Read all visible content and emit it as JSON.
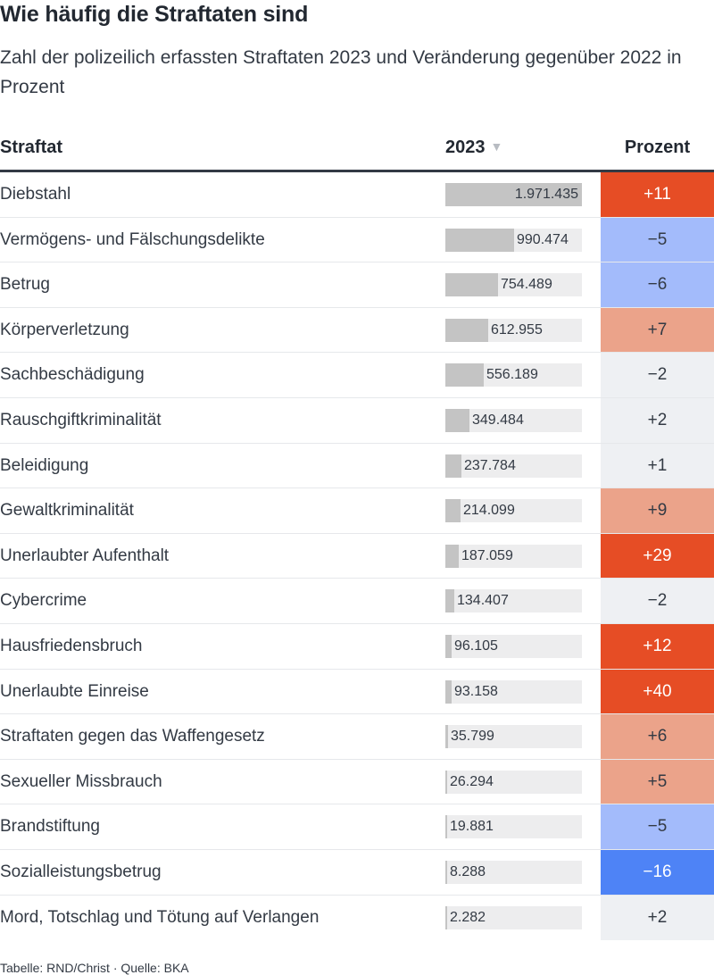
{
  "title": "Wie häufig die Straftaten sind",
  "subtitle": "Zahl der polizeilich erfassten Straftaten 2023 und Veränderung gegenüber 2022 in Prozent",
  "columns": {
    "name": "Straftat",
    "value": "2023",
    "sort_icon": "sort-down-icon",
    "change": "Prozent"
  },
  "source": "Tabelle: RND/Christ · Quelle: BKA",
  "colors": {
    "strong_increase": "#e64d25",
    "increase": "#eba38a",
    "neutral": "#eef0f3",
    "decrease": "#a3bbfb",
    "strong_decrease": "#4e83f6",
    "bar": "#c4c4c4",
    "bar_track": "#ededee"
  },
  "chart_data": {
    "type": "table",
    "max_value": 1971435,
    "rows": [
      {
        "name": "Diebstahl",
        "value": 1971435,
        "value_label": "1.971.435",
        "change": 11,
        "change_label": "+11"
      },
      {
        "name": "Vermögens- und Fälschungsdelikte",
        "value": 990474,
        "value_label": "990.474",
        "change": -5,
        "change_label": "−5"
      },
      {
        "name": "Betrug",
        "value": 754489,
        "value_label": "754.489",
        "change": -6,
        "change_label": "−6"
      },
      {
        "name": "Körperverletzung",
        "value": 612955,
        "value_label": "612.955",
        "change": 7,
        "change_label": "+7"
      },
      {
        "name": "Sachbeschädigung",
        "value": 556189,
        "value_label": "556.189",
        "change": -2,
        "change_label": "−2"
      },
      {
        "name": "Rauschgiftkriminalität",
        "value": 349484,
        "value_label": "349.484",
        "change": 2,
        "change_label": "+2"
      },
      {
        "name": "Beleidigung",
        "value": 237784,
        "value_label": "237.784",
        "change": 1,
        "change_label": "+1"
      },
      {
        "name": "Gewaltkriminalität",
        "value": 214099,
        "value_label": "214.099",
        "change": 9,
        "change_label": "+9"
      },
      {
        "name": "Unerlaubter Aufenthalt",
        "value": 187059,
        "value_label": "187.059",
        "change": 29,
        "change_label": "+29"
      },
      {
        "name": "Cybercrime",
        "value": 134407,
        "value_label": "134.407",
        "change": -2,
        "change_label": "−2"
      },
      {
        "name": "Hausfriedensbruch",
        "value": 96105,
        "value_label": "96.105",
        "change": 12,
        "change_label": "+12"
      },
      {
        "name": "Unerlaubte Einreise",
        "value": 93158,
        "value_label": "93.158",
        "change": 40,
        "change_label": "+40"
      },
      {
        "name": "Straftaten gegen das Waffengesetz",
        "value": 35799,
        "value_label": "35.799",
        "change": 6,
        "change_label": "+6"
      },
      {
        "name": "Sexueller Missbrauch",
        "value": 26294,
        "value_label": "26.294",
        "change": 5,
        "change_label": "+5"
      },
      {
        "name": "Brandstiftung",
        "value": 19881,
        "value_label": "19.881",
        "change": -5,
        "change_label": "−5"
      },
      {
        "name": "Sozialleistungsbetrug",
        "value": 8288,
        "value_label": "8.288",
        "change": -16,
        "change_label": "−16"
      },
      {
        "name": "Mord, Totschlag und Tötung auf Verlangen",
        "value": 2282,
        "value_label": "2.282",
        "change": 2,
        "change_label": "+2"
      }
    ]
  }
}
